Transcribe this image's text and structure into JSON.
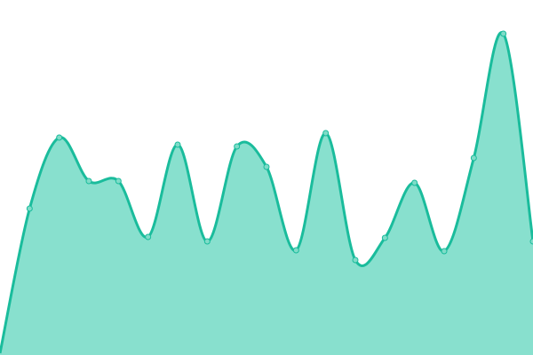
{
  "chart_data": {
    "type": "area",
    "title": "",
    "xlabel": "",
    "ylabel": "",
    "x": [
      0,
      1,
      2,
      3,
      4,
      5,
      6,
      7,
      8,
      9,
      10,
      11,
      12,
      13,
      14,
      15,
      16,
      17,
      18
    ],
    "values": [
      2,
      165,
      245,
      196,
      196,
      133,
      237,
      128,
      235,
      212,
      118,
      250,
      107,
      132,
      194,
      117,
      222,
      362,
      128
    ],
    "ylim": [
      0,
      400
    ],
    "grid": false,
    "axes_visible": false,
    "curve": "smooth",
    "colors": {
      "line": "#1abc9c",
      "fill": "#88e0ce",
      "marker_fill": "#7fdcc8",
      "marker_stroke": "#1abc9c"
    }
  }
}
